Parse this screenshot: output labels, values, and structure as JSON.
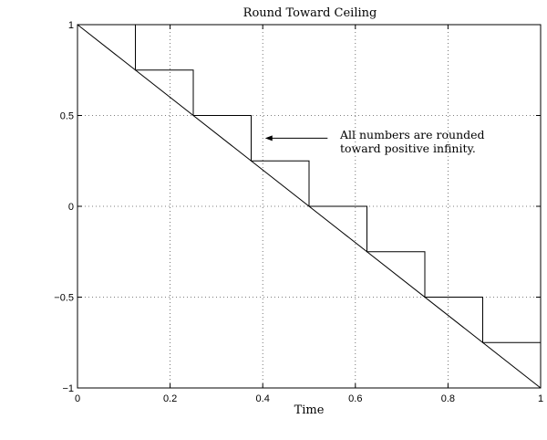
{
  "chart_data": {
    "type": "line",
    "title": "Round Toward Ceiling",
    "xlabel": "Time",
    "ylabel": "",
    "xlim": [
      0,
      1
    ],
    "ylim": [
      -1,
      1
    ],
    "grid": true,
    "xticks": [
      0,
      0.2,
      0.4,
      0.6,
      0.8,
      1
    ],
    "xtick_labels": [
      "0",
      "0.2",
      "0.4",
      "0.6",
      "0.8",
      "1"
    ],
    "yticks": [
      1,
      0.5,
      0,
      -0.5,
      -1
    ],
    "ytick_labels": [
      "1",
      "0.5",
      "0",
      "−0.5",
      "−1"
    ],
    "series": [
      {
        "style": "straight",
        "x": [
          0,
          1
        ],
        "y": [
          1,
          -1
        ]
      },
      {
        "style": "staircase",
        "x": [
          0.125,
          0.125,
          0.25,
          0.25,
          0.375,
          0.375,
          0.5,
          0.5,
          0.625,
          0.625,
          0.75,
          0.75,
          0.875,
          0.875,
          1,
          1
        ],
        "y": [
          1,
          0.75,
          0.75,
          0.5,
          0.5,
          0.25,
          0.25,
          0,
          0,
          -0.25,
          -0.25,
          -0.5,
          -0.5,
          -0.75,
          -0.75,
          -0.65
        ]
      }
    ],
    "annotation": {
      "lines": [
        "All numbers are rounded",
        "toward positive infinity."
      ],
      "arrow_from": [
        0.54,
        0.375
      ],
      "arrow_to": [
        0.405,
        0.375
      ]
    }
  }
}
